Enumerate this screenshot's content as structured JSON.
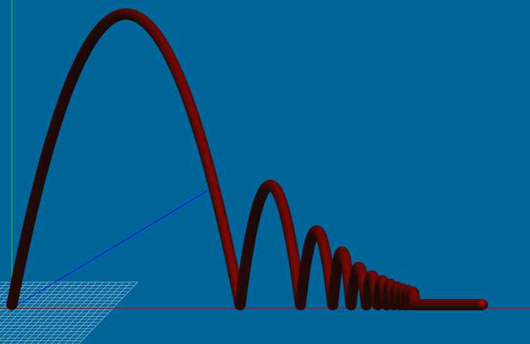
{
  "scene": {
    "background_color": "#006699",
    "axis_colors": {
      "x": "#cc0000",
      "y": "#33cc33",
      "z": "#0000ff"
    },
    "grid_color": "#b4c8d8",
    "ball_edge_color": "#e60000",
    "ball_core_color": "#1a0a08",
    "trajectory_type": "bouncing-ball",
    "bounce_count": 12
  }
}
